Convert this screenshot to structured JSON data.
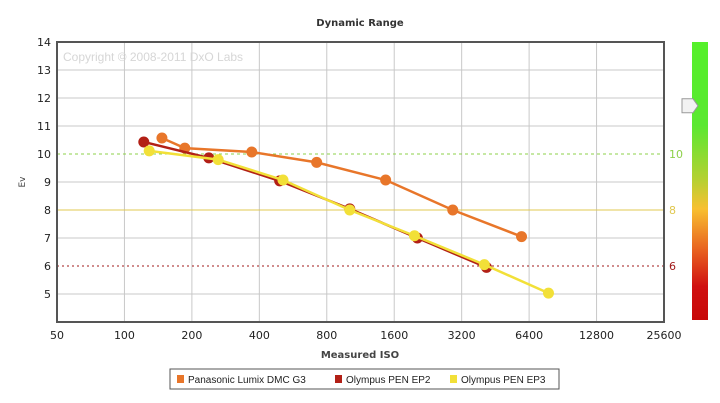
{
  "chart_data": {
    "type": "line",
    "title": "Dynamic Range",
    "xlabel": "Measured ISO",
    "ylabel": "Ev",
    "watermark": "Copyright © 2008-2011 DxO Labs",
    "x_scale": "log2",
    "xlim": [
      50,
      25600
    ],
    "ylim": [
      4,
      14
    ],
    "x_ticks": [
      "50",
      "100",
      "200",
      "400",
      "800",
      "1600",
      "3200",
      "6400",
      "12800",
      "25600"
    ],
    "y_ticks": [
      "5",
      "6",
      "7",
      "8",
      "9",
      "10",
      "11",
      "12",
      "13",
      "14"
    ],
    "grid": true,
    "legend_position": "bottom",
    "reference_lines": [
      {
        "value": 10,
        "label": "10",
        "color": "#8ed04a",
        "style": "dashed"
      },
      {
        "value": 8,
        "label": "8",
        "color": "#e0c850",
        "style": "solid"
      },
      {
        "value": 6,
        "label": "6",
        "color": "#a01818",
        "style": "dotted"
      }
    ],
    "scale_indicator_value": 11.9,
    "series": [
      {
        "name": "Panasonic Lumix DMC G3",
        "color": "#e8762a",
        "x": [
          147,
          186,
          370,
          721,
          1465,
          2920,
          5920
        ],
        "y": [
          10.57,
          10.21,
          10.07,
          9.7,
          9.07,
          8.0,
          7.05
        ]
      },
      {
        "name": "Olympus PEN EP2",
        "color": "#b22016",
        "x": [
          122,
          238,
          493,
          1013,
          2030,
          4130
        ],
        "y": [
          10.43,
          9.86,
          9.04,
          8.04,
          7.0,
          5.95
        ]
      },
      {
        "name": "Olympus PEN EP3",
        "color": "#f2e038",
        "x": [
          129,
          262,
          510,
          1013,
          1970,
          4040,
          7810
        ],
        "y": [
          10.11,
          9.8,
          9.07,
          8.0,
          7.08,
          6.05,
          5.03
        ]
      }
    ]
  }
}
